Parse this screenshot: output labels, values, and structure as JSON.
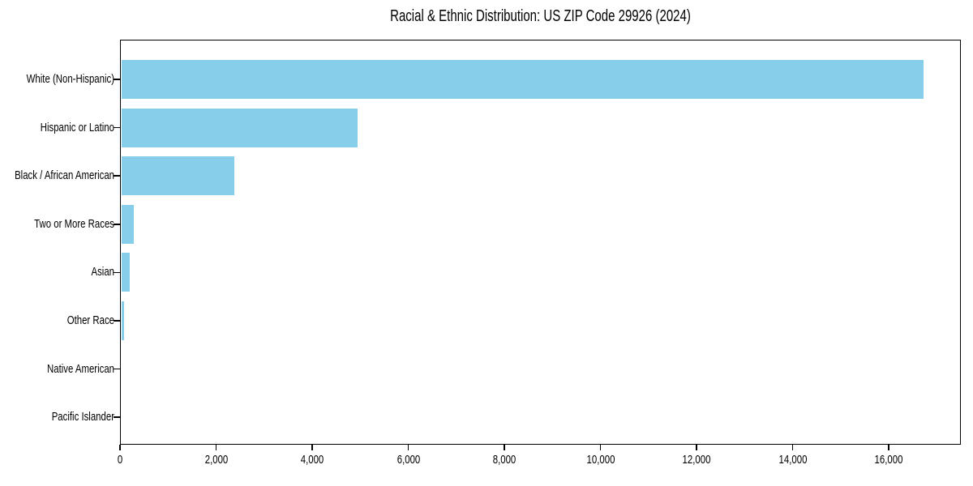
{
  "figure": {
    "background": "#ffffff"
  },
  "chart_data": {
    "type": "bar",
    "orientation": "horizontal",
    "title": "Racial & Ethnic Distribution: US ZIP Code 29926 (2024)",
    "categories": [
      "White (Non-Hispanic)",
      "Hispanic or Latino",
      "Black / African American",
      "Two or More Races",
      "Asian",
      "Other Race",
      "Native American",
      "Pacific Islander"
    ],
    "values": [
      16700,
      4920,
      2360,
      270,
      170,
      65,
      0,
      0
    ],
    "xlabel": "",
    "ylabel": "",
    "xlim": [
      0,
      17500
    ],
    "xticks": [
      0,
      2000,
      4000,
      6000,
      8000,
      10000,
      12000,
      14000,
      16000
    ],
    "xtick_labels": [
      "0",
      "2,000",
      "4,000",
      "6,000",
      "8,000",
      "10,000",
      "12,000",
      "14,000",
      "16,000"
    ],
    "bar_color": "#87CEEB",
    "axis_color": "#000000",
    "grid": false,
    "legend": false
  }
}
